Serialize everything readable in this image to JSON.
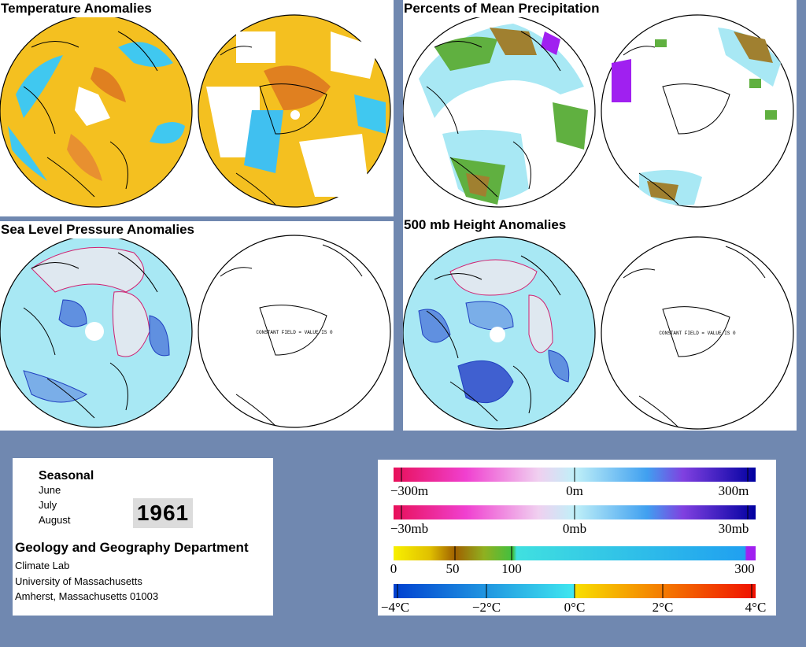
{
  "panels": {
    "temperature": {
      "title": "Temperature Anomalies"
    },
    "precipitation": {
      "title": "Percents of Mean Precipitation"
    },
    "pressure": {
      "title": "Sea Level Pressure Anomalies",
      "constant_note": "CONSTANT FIELD = VALUE IS 0"
    },
    "height": {
      "title": "500 mb Height Anomalies",
      "constant_note": "CONSTANT FIELD = VALUE IS 0"
    }
  },
  "info": {
    "period": "Seasonal",
    "months": [
      "June",
      "July",
      "August"
    ],
    "year": "1961",
    "department": "Geology and Geography Department",
    "address": [
      "Climate Lab",
      "University of Massachusetts",
      "Amherst, Massachusetts 01003"
    ]
  },
  "legend": {
    "height_ticks": [
      "−300m",
      "0m",
      "300m"
    ],
    "pressure_ticks": [
      "−30mb",
      "0mb",
      "30mb"
    ],
    "precip_ticks": [
      "0",
      "50",
      "100",
      "300"
    ],
    "temp_ticks": [
      "−4°C",
      "−2°C",
      "0°C",
      "2°C",
      "4°C"
    ]
  },
  "colors": {
    "background": "#7088b0",
    "ocean_light": "#a8e8f4",
    "temp_warm": "#f4c020",
    "temp_hot": "#e08020",
    "temp_cool": "#40c0f0",
    "precip_green": "#60b040",
    "precip_brown": "#a08030",
    "precip_purple": "#a020f0",
    "contour_neg": "#d02070",
    "contour_pos": "#2040c0"
  }
}
